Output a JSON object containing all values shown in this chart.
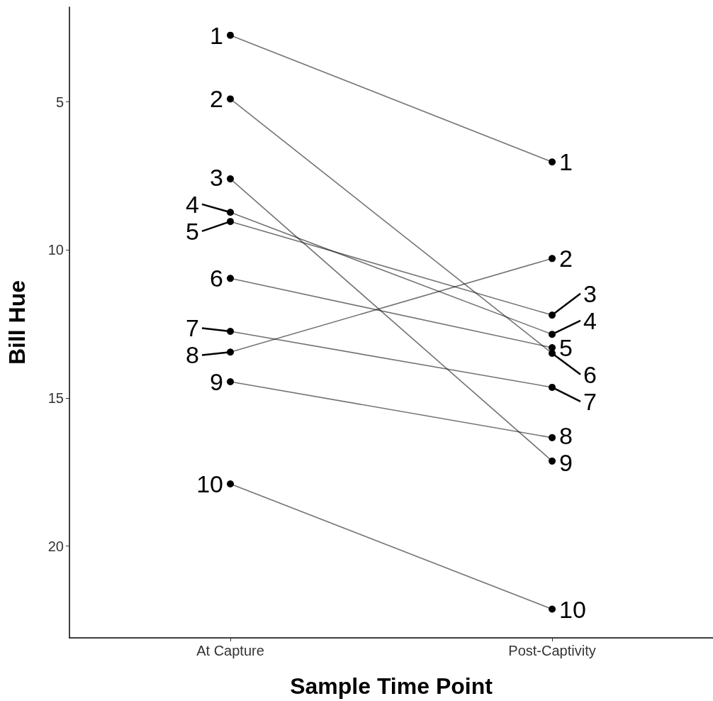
{
  "chart_data": {
    "type": "line",
    "xlabel": "Sample Time Point",
    "ylabel": "Bill Hue",
    "categories": [
      "At Capture",
      "Post-Captivity"
    ],
    "ylim": [
      23.1,
      1.8
    ],
    "yticks": [
      5,
      10,
      15,
      20
    ],
    "grid": false,
    "marker": "circle",
    "line_style": "solid",
    "series": [
      {
        "color": "#000000",
        "values": [
          2.75,
          7.03
        ]
      },
      {
        "color": "#000000",
        "values": [
          4.9,
          13.49
        ]
      },
      {
        "color": "#000000",
        "values": [
          7.6,
          17.13
        ]
      },
      {
        "color": "#000000",
        "values": [
          8.73,
          12.85
        ]
      },
      {
        "color": "#000000",
        "values": [
          9.04,
          12.2
        ]
      },
      {
        "color": "#000000",
        "values": [
          10.96,
          13.3
        ]
      },
      {
        "color": "#000000",
        "values": [
          12.75,
          14.64
        ]
      },
      {
        "color": "#000000",
        "values": [
          13.45,
          10.29
        ]
      },
      {
        "color": "#000000",
        "values": [
          14.45,
          16.34
        ]
      },
      {
        "color": "#000000",
        "values": [
          17.9,
          22.13
        ]
      }
    ],
    "annotations": [
      {
        "text": "1",
        "x": "At Capture",
        "y": 2.75
      },
      {
        "text": "2",
        "x": "At Capture",
        "y": 4.9
      },
      {
        "text": "3",
        "x": "At Capture",
        "y": 7.6
      },
      {
        "text": "4",
        "x": "At Capture",
        "y": 8.73
      },
      {
        "text": "5",
        "x": "At Capture",
        "y": 9.04
      },
      {
        "text": "6",
        "x": "At Capture",
        "y": 10.96
      },
      {
        "text": "7",
        "x": "At Capture",
        "y": 12.75
      },
      {
        "text": "8",
        "x": "At Capture",
        "y": 13.45
      },
      {
        "text": "9",
        "x": "At Capture",
        "y": 14.45
      },
      {
        "text": "10",
        "x": "At Capture",
        "y": 17.9
      },
      {
        "text": "1",
        "x": "Post-Captivity",
        "y": 7.03
      },
      {
        "text": "2",
        "x": "Post-Captivity",
        "y": 10.29
      },
      {
        "text": "3",
        "x": "Post-Captivity",
        "y": 12.2
      },
      {
        "text": "4",
        "x": "Post-Captivity",
        "y": 12.85
      },
      {
        "text": "5",
        "x": "Post-Captivity",
        "y": 13.3
      },
      {
        "text": "6",
        "x": "Post-Captivity",
        "y": 13.49
      },
      {
        "text": "7",
        "x": "Post-Captivity",
        "y": 14.64
      },
      {
        "text": "8",
        "x": "Post-Captivity",
        "y": 16.34
      },
      {
        "text": "9",
        "x": "Post-Captivity",
        "y": 17.13
      },
      {
        "text": "10",
        "x": "Post-Captivity",
        "y": 22.13
      }
    ]
  }
}
